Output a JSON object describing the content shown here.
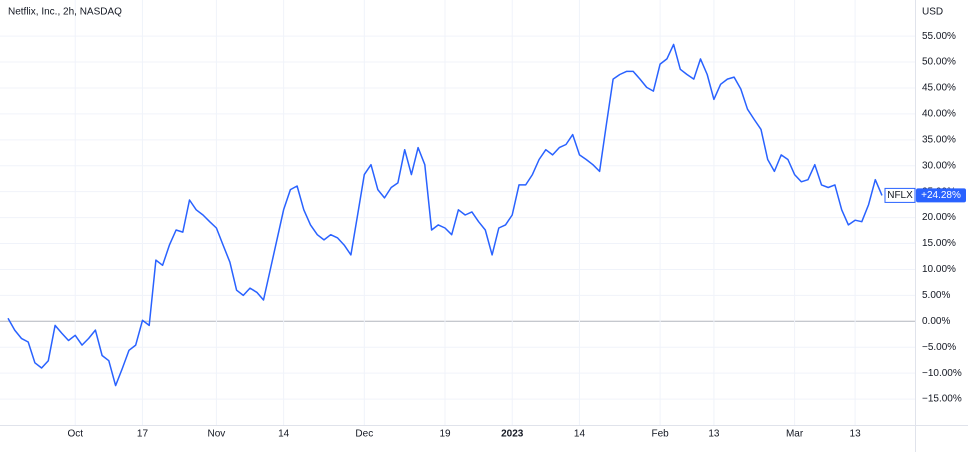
{
  "chart_data": {
    "type": "line",
    "title": "Netflix, Inc., 2h, NASDAQ",
    "currency": "USD",
    "series": [
      {
        "name": "NFLX",
        "color": "#2962ff",
        "values": [
          0.6,
          -1.7,
          -3.3,
          -4,
          -8,
          -9,
          -7.6,
          -0.8,
          -2.3,
          -3.7,
          -2.7,
          -4.6,
          -3.3,
          -1.7,
          -6.6,
          -7.6,
          -12.4,
          -9.1,
          -5.6,
          -4.6,
          0.2,
          -0.8,
          11.8,
          10.8,
          14.7,
          17.6,
          17.2,
          23.4,
          21.5,
          20.5,
          19.2,
          18,
          14.7,
          11.4,
          6,
          5,
          6.4,
          5.6,
          4.1,
          9.9,
          15.7,
          21.5,
          25.4,
          26.1,
          21.5,
          18.6,
          16.7,
          15.7,
          16.7,
          16.1,
          14.7,
          12.8,
          20.5,
          28.3,
          30.2,
          25.4,
          23.8,
          25.8,
          26.7,
          33.1,
          28.3,
          33.5,
          30.2,
          17.6,
          18.6,
          18,
          16.7,
          21.5,
          20.5,
          21.1,
          19.2,
          17.6,
          12.8,
          18,
          18.6,
          20.5,
          26.3,
          26.3,
          28.3,
          31.2,
          33.1,
          32.1,
          33.5,
          34.1,
          36,
          32.1,
          31.2,
          30.2,
          28.9,
          38,
          46.7,
          47.6,
          48.2,
          48.2,
          46.7,
          45.1,
          44.4,
          49.6,
          50.6,
          53.4,
          48.6,
          47.6,
          46.7,
          50.6,
          47.6,
          42.8,
          45.7,
          46.7,
          47.1,
          44.8,
          40.9,
          38.9,
          37,
          31.2,
          28.9,
          32.1,
          31.2,
          28.3,
          26.9,
          27.3,
          30.2,
          26.3,
          25.8,
          26.3,
          21.5,
          18.6,
          19.5,
          19.2,
          22.5,
          27.3,
          24.28
        ]
      }
    ],
    "last_label": "+24.28%",
    "xlim": [
      0,
      130
    ],
    "xticks": [
      {
        "value": 10,
        "label": "Oct"
      },
      {
        "value": 20,
        "label": "17"
      },
      {
        "value": 31,
        "label": "Nov"
      },
      {
        "value": 41,
        "label": "14"
      },
      {
        "value": 53,
        "label": "Dec"
      },
      {
        "value": 65,
        "label": "19"
      },
      {
        "value": 75,
        "label": "2023"
      },
      {
        "value": 85,
        "label": "14"
      },
      {
        "value": 97,
        "label": "Feb"
      },
      {
        "value": 105,
        "label": "13"
      },
      {
        "value": 117,
        "label": "Mar"
      },
      {
        "value": 126,
        "label": "13"
      }
    ],
    "ylim": [
      -20,
      61
    ],
    "yticks": [
      {
        "value": -15,
        "label": "−15.00%"
      },
      {
        "value": -10,
        "label": "−10.00%"
      },
      {
        "value": -5,
        "label": "−5.00%"
      },
      {
        "value": 0,
        "label": "0.00%"
      },
      {
        "value": 5,
        "label": "5.00%"
      },
      {
        "value": 10,
        "label": "10.00%"
      },
      {
        "value": 15,
        "label": "15.00%"
      },
      {
        "value": 20,
        "label": "20.00%"
      },
      {
        "value": 25,
        "label": "25.00%"
      },
      {
        "value": 30,
        "label": "30.00%"
      },
      {
        "value": 35,
        "label": "35.00%"
      },
      {
        "value": 40,
        "label": "40.00%"
      },
      {
        "value": 45,
        "label": "45.00%"
      },
      {
        "value": 50,
        "label": "50.00%"
      },
      {
        "value": 55,
        "label": "55.00%"
      }
    ],
    "grid": true
  }
}
